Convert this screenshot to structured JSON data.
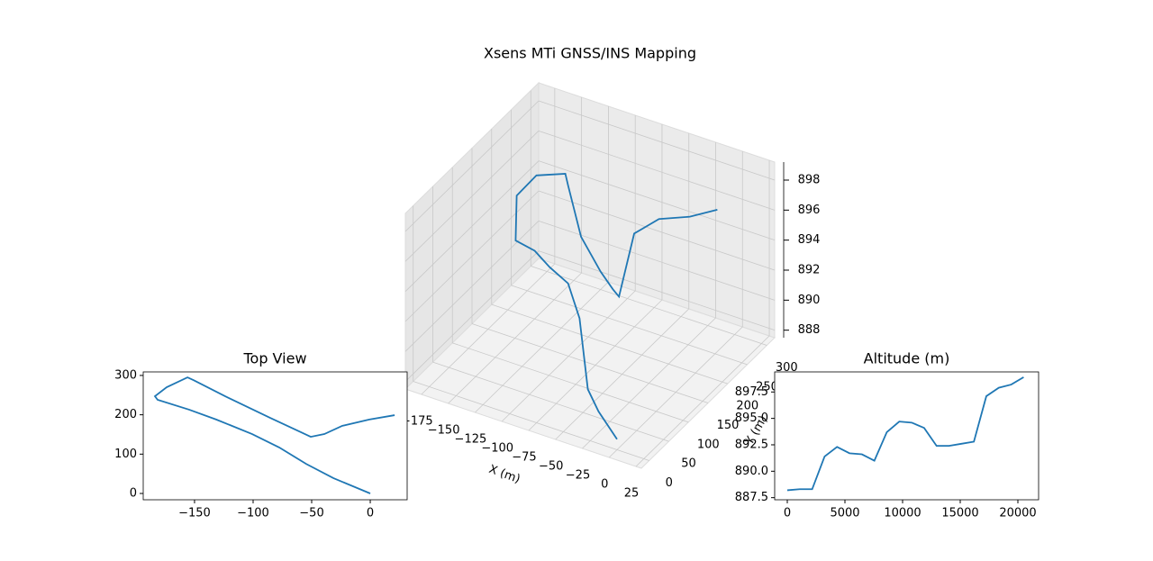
{
  "chart_data": [
    {
      "type": "line3d",
      "title": "Xsens MTi GNSS/INS Mapping",
      "xlabel": "X (m)",
      "ylabel": "Y (m)",
      "color": "#1f77b4",
      "x": [
        0,
        -31.5,
        -54.6,
        -77.7,
        -100.8,
        -131.5,
        -154.6,
        -181.5,
        -183.8,
        -173.8,
        -156,
        -150.8,
        -123.8,
        -85.4,
        -62.3,
        -50.8,
        -39.2,
        -23.8,
        -0.8,
        20.8
      ],
      "y": [
        0,
        39,
        75,
        117,
        151,
        188,
        213,
        238,
        247,
        270,
        295,
        288,
        247,
        192,
        160,
        144,
        151,
        172,
        188,
        199
      ],
      "z": [
        888.2,
        888.3,
        888.3,
        891.4,
        892.3,
        891.7,
        891.6,
        891,
        893.7,
        894.7,
        894.6,
        894.1,
        892.4,
        892.4,
        892.6,
        892.8,
        897.1,
        897.9,
        898.2,
        898.9
      ],
      "xlim": [
        -190,
        30
      ],
      "ylim": [
        -20,
        320
      ],
      "zlim": [
        887.5,
        899.2
      ],
      "xticks": [
        {
          "value": -175,
          "label": "−175"
        },
        {
          "value": -150,
          "label": "−150"
        },
        {
          "value": -125,
          "label": "−125"
        },
        {
          "value": -100,
          "label": "−100"
        },
        {
          "value": -75,
          "label": "−75"
        },
        {
          "value": -50,
          "label": "−50"
        },
        {
          "value": -25,
          "label": "−25"
        },
        0,
        25
      ],
      "yticks": [
        0,
        50,
        100,
        150,
        200,
        250,
        300
      ],
      "zticks": [
        888,
        890,
        892,
        894,
        896,
        898
      ],
      "grid": true
    },
    {
      "type": "line",
      "title": "Top View",
      "color": "#1f77b4",
      "x": [
        0,
        -31.5,
        -54.6,
        -77.7,
        -100.8,
        -131.5,
        -154.6,
        -181.5,
        -183.8,
        -173.8,
        -156,
        -150.8,
        -123.8,
        -85.4,
        -62.3,
        -50.8,
        -39.2,
        -23.8,
        -0.8,
        20.8
      ],
      "values": [
        0,
        39,
        75,
        117,
        151,
        188,
        213,
        238,
        247,
        270,
        295,
        288,
        247,
        192,
        160,
        144,
        151,
        172,
        188,
        199
      ],
      "xlim": [
        -193.8,
        31.5
      ],
      "ylim": [
        -16,
        309
      ],
      "xticks": [
        {
          "value": -150,
          "label": "−150"
        },
        {
          "value": -100,
          "label": "−100"
        },
        {
          "value": -50,
          "label": "−50"
        },
        0
      ],
      "yticks": [
        0,
        100,
        200,
        300
      ]
    },
    {
      "type": "line",
      "title": "Altitude (m)",
      "color": "#1f77b4",
      "x": [
        0,
        1079,
        2158,
        3237,
        4316,
        5395,
        6474,
        7553,
        8632,
        9711,
        10790,
        11868,
        12947,
        14026,
        15105,
        16184,
        17263,
        18342,
        19421,
        20500
      ],
      "values": [
        888.2,
        888.3,
        888.3,
        891.4,
        892.3,
        891.7,
        891.6,
        891,
        893.7,
        894.7,
        894.6,
        894.1,
        892.4,
        892.4,
        892.6,
        892.8,
        897.1,
        897.9,
        898.2,
        898.9
      ],
      "xlim": [
        -1094,
        21797
      ],
      "ylim": [
        887.3,
        899.4
      ],
      "xticks": [
        0,
        5000,
        10000,
        15000,
        20000
      ],
      "yticks": [
        {
          "value": 887.5,
          "label": "887.5"
        },
        {
          "value": 890,
          "label": "890.0"
        },
        {
          "value": 892.5,
          "label": "892.5"
        },
        {
          "value": 895,
          "label": "895.0"
        },
        {
          "value": 897.5,
          "label": "897.5"
        }
      ]
    }
  ]
}
